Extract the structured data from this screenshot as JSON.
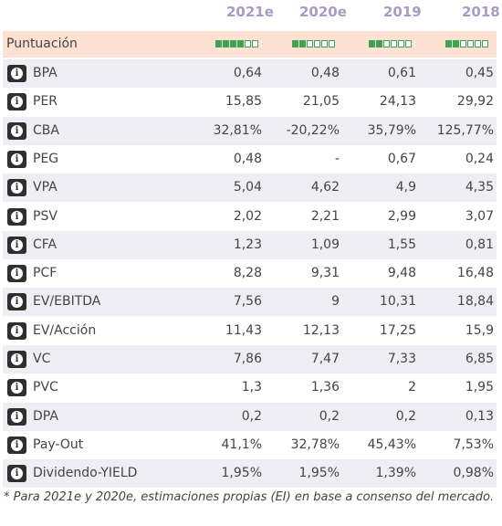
{
  "columns": [
    "2021e",
    "2020e",
    "2019",
    "2018"
  ],
  "score": {
    "label": "Puntuación",
    "levels": [
      {
        "filled": 4,
        "total": 6
      },
      {
        "filled": 2,
        "total": 6
      },
      {
        "filled": 2,
        "total": 6
      },
      {
        "filled": 2,
        "total": 6
      }
    ],
    "color": "#3fa34d"
  },
  "rows": [
    {
      "label": "BPA",
      "values": [
        "0,64",
        "0,48",
        "0,61",
        "0,45"
      ]
    },
    {
      "label": "PER",
      "values": [
        "15,85",
        "21,05",
        "24,13",
        "29,92"
      ]
    },
    {
      "label": "CBA",
      "values": [
        "32,81%",
        "-20,22%",
        "35,79%",
        "125,77%"
      ]
    },
    {
      "label": "PEG",
      "values": [
        "0,48",
        "-",
        "0,67",
        "0,24"
      ]
    },
    {
      "label": "VPA",
      "values": [
        "5,04",
        "4,62",
        "4,9",
        "4,35"
      ]
    },
    {
      "label": "PSV",
      "values": [
        "2,02",
        "2,21",
        "2,99",
        "3,07"
      ]
    },
    {
      "label": "CFA",
      "values": [
        "1,23",
        "1,09",
        "1,55",
        "0,81"
      ]
    },
    {
      "label": "PCF",
      "values": [
        "8,28",
        "9,31",
        "9,48",
        "16,48"
      ]
    },
    {
      "label": "EV/EBITDA",
      "values": [
        "7,56",
        "9",
        "10,31",
        "18,84"
      ]
    },
    {
      "label": "EV/Acción",
      "values": [
        "11,43",
        "12,13",
        "17,25",
        "15,9"
      ]
    },
    {
      "label": "VC",
      "values": [
        "7,86",
        "7,47",
        "7,33",
        "6,85"
      ]
    },
    {
      "label": "PVC",
      "values": [
        "1,3",
        "1,36",
        "2",
        "1,95"
      ]
    },
    {
      "label": "DPA",
      "values": [
        "0,2",
        "0,2",
        "0,2",
        "0,13"
      ]
    },
    {
      "label": "Pay-Out",
      "values": [
        "41,1%",
        "32,78%",
        "45,43%",
        "7,53%"
      ]
    },
    {
      "label": "Dividendo-YIELD",
      "values": [
        "1,95%",
        "1,95%",
        "1,39%",
        "0,98%"
      ]
    }
  ],
  "info_icon": "info-icon",
  "note": "* Para 2021e y 2020e, estimaciones propias (EI) en base a consenso del mercado."
}
